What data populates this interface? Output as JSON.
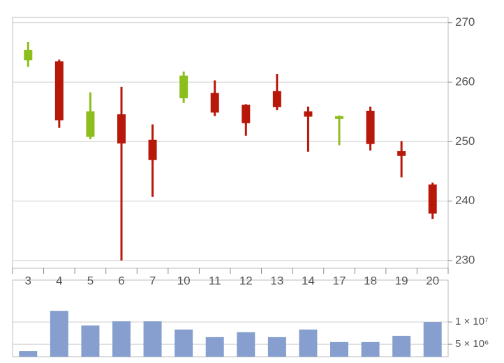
{
  "chart_data": [
    {
      "type": "candlestick",
      "categories": [
        "3",
        "4",
        "5",
        "6",
        "7",
        "10",
        "11",
        "12",
        "13",
        "14",
        "17",
        "18",
        "19",
        "20"
      ],
      "open": [
        263.7,
        263.5,
        250.8,
        254.6,
        250.3,
        257.3,
        258.2,
        256.2,
        258.5,
        255.1,
        253.8,
        255.2,
        248.4,
        242.8
      ],
      "high": [
        266.8,
        263.8,
        258.3,
        259.2,
        252.9,
        261.8,
        260.3,
        256.3,
        261.4,
        255.9,
        254.4,
        255.9,
        250.1,
        243.1
      ],
      "low": [
        262.6,
        252.3,
        250.4,
        230.0,
        240.7,
        256.5,
        254.3,
        251.0,
        255.3,
        248.3,
        249.4,
        248.5,
        244.0,
        237.0
      ],
      "close": [
        265.4,
        253.6,
        255.1,
        249.7,
        246.9,
        261.1,
        254.9,
        253.1,
        255.8,
        254.2,
        254.3,
        249.6,
        247.6,
        237.9
      ],
      "up_color": "#8cbf1c",
      "down_color": "#b8180a",
      "ylim": [
        228.7,
        270.9
      ],
      "yticks": [
        230,
        240,
        250,
        260,
        270
      ],
      "grid": true
    },
    {
      "type": "bar",
      "values": [
        3440000,
        12500000,
        9200000,
        10150000,
        10150000,
        8300000,
        6600000,
        7700000,
        6600000,
        8300000,
        5500000,
        5500000,
        6900000,
        10000000
      ],
      "color": "#869fcf",
      "ylim": [
        2200000,
        19400000
      ],
      "yticks": [
        {
          "value": 5000000,
          "label": "5 × 10⁶"
        },
        {
          "value": 10000000,
          "label": "1 × 10⁷"
        }
      ],
      "grid": true
    }
  ]
}
